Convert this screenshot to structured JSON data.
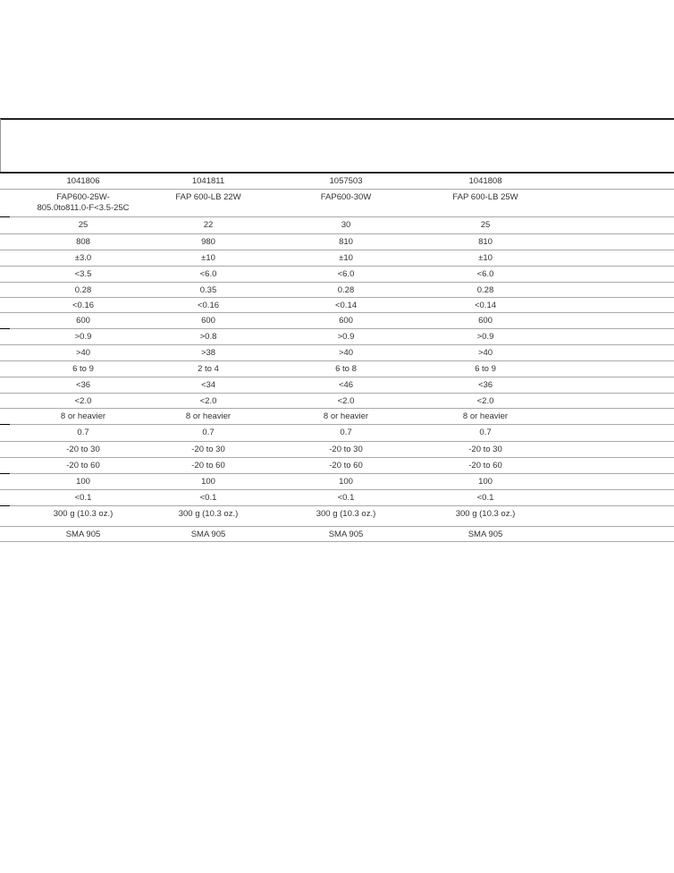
{
  "table": {
    "rows": [
      [
        "1041806",
        "1041811",
        "1057503",
        "1041808"
      ],
      [
        "FAP600-25W-805.0to811.0-F<3.5-25C",
        "FAP 600-LB 22W",
        "FAP600-30W",
        "FAP 600-LB 25W"
      ],
      [
        "25",
        "22",
        "30",
        "25"
      ],
      [
        "808",
        "980",
        "810",
        "810"
      ],
      [
        "±3.0",
        "±10",
        "±10",
        "±10"
      ],
      [
        "<3.5",
        "<6.0",
        "<6.0",
        "<6.0"
      ],
      [
        "0.28",
        "0.35",
        "0.28",
        "0.28"
      ],
      [
        "<0.16",
        "<0.16",
        "<0.14",
        "<0.14"
      ],
      [
        "600",
        "600",
        "600",
        "600"
      ],
      [
        ">0.9",
        ">0.8",
        ">0.9",
        ">0.9"
      ],
      [
        ">40",
        ">38",
        ">40",
        ">40"
      ],
      [
        "6 to 9",
        "2 to 4",
        "6 to 8",
        "6 to 9"
      ],
      [
        "<36",
        "<34",
        "<46",
        "<36"
      ],
      [
        "<2.0",
        "<2.0",
        "<2.0",
        "<2.0"
      ],
      [
        "8 or heavier",
        "8 or heavier",
        "8 or heavier",
        "8 or heavier"
      ],
      [
        "0.7",
        "0.7",
        "0.7",
        "0.7"
      ],
      [
        "-20 to 30",
        "-20 to 30",
        "-20 to 30",
        "-20 to 30"
      ],
      [
        "-20 to 60",
        "-20 to 60",
        "-20 to 60",
        "-20 to 60"
      ],
      [
        "100",
        "100",
        "100",
        "100"
      ],
      [
        "<0.1",
        "<0.1",
        "<0.1",
        "<0.1"
      ],
      [
        "300 g (10.3 oz.)",
        "300 g (10.3 oz.)",
        "300 g (10.3 oz.)",
        "300 g (10.3 oz.)"
      ],
      [
        "SMA 905",
        "SMA 905",
        "SMA 905",
        "SMA 905"
      ]
    ]
  }
}
